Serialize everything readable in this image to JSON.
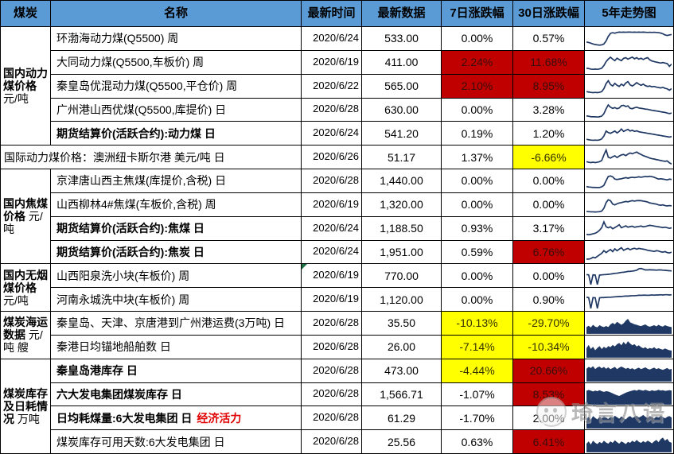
{
  "colors": {
    "header_bg": "#5B9BD5",
    "red_bg": "#C00000",
    "red_text": "#3A0C0C",
    "yellow_bg": "#FFFF00",
    "yellow_text": "#333300",
    "spark": "#1F3864",
    "note_red": "#E00000",
    "flag_green": "#1E7145"
  },
  "watermark": {
    "text": "琦言八语"
  },
  "table": {
    "columns": [
      "煤炭",
      "名称",
      "最新时间",
      "最新数据",
      "7日涨跌幅",
      "30日涨跌幅",
      "5年走势图"
    ],
    "groups": [
      {
        "bold": "国内动力煤价格",
        "unit": "元/吨",
        "row_start": 0,
        "span": 5
      },
      {
        "bold": "国内焦煤价格",
        "unit": "元/吨",
        "row_start": 6,
        "span": 4
      },
      {
        "bold": "国内无烟煤价格",
        "unit": "元/吨",
        "row_start": 10,
        "span": 2
      },
      {
        "bold": "煤炭海运数据",
        "unit": "元/吨 艘",
        "row_start": 12,
        "span": 2
      },
      {
        "bold": "煤炭库存及日耗情况",
        "unit": "万吨",
        "row_start": 14,
        "span": 4
      }
    ],
    "rows": [
      {
        "name": "环渤海动力煤(Q5500) 周",
        "bold": false,
        "date": "2020/6/24",
        "value": "533.00",
        "d7": "0.00%",
        "d7_bg": "none",
        "d30": "0.57%",
        "d30_bg": "none",
        "spark": {
          "type": "line",
          "points": [
            0.32,
            0.3,
            0.26,
            0.22,
            0.19,
            0.17,
            0.16,
            0.17,
            0.22,
            0.38,
            0.62,
            0.78,
            0.82,
            0.79,
            0.83,
            0.85,
            0.84,
            0.85,
            0.84,
            0.85,
            0.85,
            0.84,
            0.85,
            0.84,
            0.85,
            0.84,
            0.85,
            0.84,
            0.83,
            0.84,
            0.83,
            0.84,
            0.83,
            0.82,
            0.8,
            0.76,
            0.7,
            0.67,
            0.7,
            0.72
          ]
        }
      },
      {
        "name": "大同动力煤(Q5500,车板价) 周",
        "bold": false,
        "date": "2020/6/19",
        "value": "411.00",
        "d7": "2.24%",
        "d7_bg": "red",
        "d30": "11.68%",
        "d30_bg": "red",
        "spark": {
          "type": "line",
          "points": [
            0.2,
            0.18,
            0.15,
            0.14,
            0.15,
            0.14,
            0.16,
            0.2,
            0.34,
            0.55,
            0.68,
            0.78,
            0.68,
            0.6,
            0.73,
            0.66,
            0.6,
            0.72,
            0.76,
            0.68,
            0.74,
            0.79,
            0.7,
            0.76,
            0.68,
            0.73,
            0.66,
            0.72,
            0.76,
            0.64,
            0.58,
            0.55,
            0.52,
            0.5,
            0.47,
            0.5,
            0.47,
            0.44,
            0.3,
            0.42
          ]
        }
      },
      {
        "name": "秦皇岛优混动力煤(Q5500,平仓价) 周",
        "bold": false,
        "date": "2020/6/22",
        "value": "565.00",
        "d7": "2.10%",
        "d7_bg": "red",
        "d30": "8.95%",
        "d30_bg": "red",
        "spark": {
          "type": "line",
          "points": [
            0.22,
            0.2,
            0.18,
            0.17,
            0.18,
            0.17,
            0.19,
            0.22,
            0.38,
            0.65,
            0.8,
            0.6,
            0.52,
            0.66,
            0.56,
            0.5,
            0.62,
            0.54,
            0.68,
            0.75,
            0.58,
            0.52,
            0.6,
            0.7,
            0.62,
            0.56,
            0.62,
            0.54,
            0.5,
            0.52,
            0.48,
            0.5,
            0.46,
            0.44,
            0.42,
            0.45,
            0.4,
            0.37,
            0.3,
            0.38
          ]
        }
      },
      {
        "name": "广州港山西优煤(Q5500,库提价) 日",
        "bold": false,
        "date": "2020/6/28",
        "value": "630.00",
        "d7": "0.00%",
        "d7_bg": "none",
        "d30": "3.28%",
        "d30_bg": "none",
        "spark": {
          "type": "line",
          "points": [
            0.2,
            0.18,
            0.16,
            0.15,
            0.15,
            0.14,
            0.16,
            0.19,
            0.32,
            0.58,
            0.78,
            0.66,
            0.6,
            0.64,
            0.58,
            0.62,
            0.74,
            0.76,
            0.7,
            0.73,
            0.6,
            0.58,
            0.63,
            0.66,
            0.62,
            0.6,
            0.58,
            0.56,
            0.55,
            0.52,
            0.5,
            0.48,
            0.46,
            0.44,
            0.42,
            0.4,
            0.38,
            0.35,
            0.32,
            0.35
          ]
        }
      },
      {
        "name": "期货结算价(活跃合约):动力煤 日",
        "bold": true,
        "date": "2020/6/24",
        "value": "541.20",
        "d7": "0.19%",
        "d7_bg": "none",
        "d30": "1.20%",
        "d30_bg": "none",
        "spark": {
          "type": "line",
          "points": [
            0.18,
            0.16,
            0.14,
            0.13,
            0.14,
            0.13,
            0.15,
            0.2,
            0.36,
            0.62,
            0.54,
            0.5,
            0.56,
            0.62,
            0.52,
            0.6,
            0.73,
            0.6,
            0.66,
            0.71,
            0.62,
            0.66,
            0.6,
            0.63,
            0.58,
            0.56,
            0.54,
            0.52,
            0.5,
            0.48,
            0.46,
            0.44,
            0.42,
            0.4,
            0.38,
            0.36,
            0.34,
            0.32,
            0.3,
            0.33
          ]
        }
      },
      {
        "name": "国际动力煤价格：澳洲纽卡斯尔港 美元/吨 日",
        "bold": false,
        "wide": true,
        "date": "2020/6/26",
        "value": "51.17",
        "d7": "1.37%",
        "d7_bg": "none",
        "d30": "-6.66%",
        "d30_bg": "yellow",
        "spark": {
          "type": "line",
          "points": [
            0.26,
            0.23,
            0.21,
            0.23,
            0.21,
            0.23,
            0.26,
            0.32,
            0.62,
            0.88,
            0.5,
            0.45,
            0.52,
            0.57,
            0.48,
            0.56,
            0.62,
            0.64,
            0.58,
            0.66,
            0.72,
            0.68,
            0.73,
            0.77,
            0.7,
            0.64,
            0.58,
            0.54,
            0.5,
            0.45,
            0.42,
            0.4,
            0.37,
            0.35,
            0.32,
            0.3,
            0.28,
            0.3,
            0.2,
            0.14
          ]
        }
      },
      {
        "name": "京津唐山西主焦煤(库提价,含税) 日",
        "bold": false,
        "date": "2020/6/28",
        "value": "1,440.00",
        "d7": "0.00%",
        "d7_bg": "none",
        "d30": "0.00%",
        "d30_bg": "none",
        "spark": {
          "type": "line",
          "points": [
            0.2,
            0.18,
            0.17,
            0.16,
            0.16,
            0.15,
            0.16,
            0.19,
            0.27,
            0.52,
            0.74,
            0.77,
            0.72,
            0.6,
            0.58,
            0.6,
            0.62,
            0.65,
            0.68,
            0.65,
            0.68,
            0.7,
            0.68,
            0.7,
            0.72,
            0.7,
            0.72,
            0.74,
            0.73,
            0.75,
            0.73,
            0.7,
            0.65,
            0.6,
            0.62,
            0.6,
            0.58,
            0.56,
            0.6,
            0.58
          ]
        }
      },
      {
        "name": "山西柳林4#焦煤(车板价,含税) 周",
        "bold": false,
        "date": "2020/6/19",
        "value": "1,320.00",
        "d7": "0.00%",
        "d7_bg": "none",
        "d30": "0.00%",
        "d30_bg": "none",
        "spark": {
          "type": "line",
          "points": [
            0.15,
            0.14,
            0.13,
            0.13,
            0.12,
            0.13,
            0.14,
            0.17,
            0.32,
            0.62,
            0.77,
            0.72,
            0.54,
            0.5,
            0.56,
            0.6,
            0.62,
            0.65,
            0.68,
            0.66,
            0.7,
            0.72,
            0.7,
            0.72,
            0.73,
            0.72,
            0.7,
            0.68,
            0.65,
            0.6,
            0.58,
            0.56,
            0.54,
            0.5,
            0.48,
            0.5,
            0.46,
            0.44,
            0.46,
            0.45
          ]
        }
      },
      {
        "name": "期货结算价(活跃合约):焦煤 日",
        "bold": true,
        "date": "2020/6/24",
        "value": "1,188.50",
        "d7": "0.93%",
        "d7_bg": "none",
        "d30": "3.17%",
        "d30_bg": "none",
        "spark": {
          "type": "line",
          "points": [
            0.2,
            0.18,
            0.2,
            0.23,
            0.26,
            0.32,
            0.42,
            0.56,
            0.86,
            0.6,
            0.55,
            0.6,
            0.5,
            0.56,
            0.63,
            0.71,
            0.55,
            0.6,
            0.65,
            0.58,
            0.61,
            0.63,
            0.58,
            0.6,
            0.62,
            0.64,
            0.6,
            0.62,
            0.65,
            0.68,
            0.66,
            0.64,
            0.62,
            0.6,
            0.58,
            0.56,
            0.58,
            0.55,
            0.52,
            0.55
          ]
        }
      },
      {
        "name": "期货结算价(活跃合约):焦炭 日",
        "bold": true,
        "date": "2020/6/24",
        "value": "1,951.00",
        "d7": "0.59%",
        "d7_bg": "none",
        "d30": "6.76%",
        "d30_bg": "red",
        "spark": {
          "type": "line",
          "points": [
            0.15,
            0.15,
            0.18,
            0.25,
            0.22,
            0.3,
            0.38,
            0.46,
            0.6,
            0.5,
            0.58,
            0.66,
            0.55,
            0.7,
            0.6,
            0.68,
            0.76,
            0.62,
            0.68,
            0.72,
            0.65,
            0.7,
            0.73,
            0.68,
            0.72,
            0.7,
            0.68,
            0.66,
            0.62,
            0.6,
            0.58,
            0.56,
            0.6,
            0.58,
            0.54,
            0.52,
            0.55,
            0.5,
            0.48,
            0.52
          ]
        }
      },
      {
        "name": "山西阳泉洗小块(车板价) 周",
        "bold": false,
        "date": "2020/6/19",
        "date_flag": true,
        "value": "770.00",
        "d7": "0.00%",
        "d7_bg": "none",
        "d30": "0.00%",
        "d30_bg": "none",
        "spark": {
          "type": "line",
          "points": [
            0.55,
            0.54,
            0.03,
            0.54,
            0.53,
            0.03,
            0.53,
            0.54,
            0.55,
            0.56,
            0.57,
            0.58,
            0.6,
            0.62,
            0.63,
            0.65,
            0.67,
            0.68,
            0.7,
            0.72,
            0.73,
            0.74,
            0.76,
            0.79,
            0.86,
            0.88,
            0.84,
            0.8,
            0.8,
            0.81,
            0.8,
            0.8,
            0.79,
            0.8,
            0.8,
            0.79,
            0.78,
            0.77,
            0.76,
            0.75
          ]
        }
      },
      {
        "name": "河南永城洗中块(车板价) 周",
        "bold": false,
        "date": "2020/6/19",
        "value": "1,120.00",
        "d7": "0.00%",
        "d7_bg": "none",
        "d30": "0.90%",
        "d30_bg": "none",
        "spark": {
          "type": "line",
          "points": [
            0.62,
            0.6,
            0.03,
            0.6,
            0.59,
            0.03,
            0.59,
            0.6,
            0.6,
            0.61,
            0.62,
            0.62,
            0.63,
            0.64,
            0.65,
            0.66,
            0.66,
            0.67,
            0.68,
            0.68,
            0.69,
            0.7,
            0.7,
            0.71,
            0.72,
            0.72,
            0.73,
            0.73,
            0.72,
            0.73,
            0.74,
            0.73,
            0.74,
            0.74,
            0.75,
            0.74,
            0.75,
            0.75,
            0.74,
            0.75
          ]
        }
      },
      {
        "name": "秦皇岛、天津、京唐港到广州港运费(3万吨) 日",
        "bold": false,
        "date": "2020/6/28",
        "value": "35.50",
        "d7": "-10.13%",
        "d7_bg": "yellow",
        "d30": "-29.70%",
        "d30_bg": "yellow",
        "spark": {
          "type": "area",
          "points": [
            0.3,
            0.37,
            0.28,
            0.42,
            0.32,
            0.29,
            0.4,
            0.34,
            0.3,
            0.36,
            0.3,
            0.44,
            0.52,
            0.45,
            0.58,
            0.5,
            0.42,
            0.5,
            0.64,
            0.74,
            0.55,
            0.5,
            0.45,
            0.42,
            0.38,
            0.35,
            0.4,
            0.44,
            0.36,
            0.32,
            0.36,
            0.4,
            0.34,
            0.42,
            0.36,
            0.33,
            0.4,
            0.35,
            0.32,
            0.3
          ]
        }
      },
      {
        "name": "秦港日均锚地船舶数 日",
        "bold": false,
        "date": "2020/6/28",
        "value": "26.00",
        "d7": "-7.14%",
        "d7_bg": "yellow",
        "d30": "-10.34%",
        "d30_bg": "yellow",
        "spark": {
          "type": "area",
          "points": [
            0.45,
            0.62,
            0.4,
            0.52,
            0.34,
            0.46,
            0.56,
            0.4,
            0.52,
            0.44,
            0.56,
            0.5,
            0.62,
            0.54,
            0.66,
            0.72,
            0.6,
            0.78,
            0.64,
            0.82,
            0.7,
            0.6,
            0.66,
            0.54,
            0.6,
            0.5,
            0.44,
            0.5,
            0.4,
            0.46,
            0.42,
            0.5,
            0.4,
            0.45,
            0.4,
            0.37,
            0.43,
            0.38,
            0.34,
            0.32
          ]
        }
      },
      {
        "name": "秦皇岛港库存 日",
        "bold": true,
        "date": "2020/6/28",
        "value": "473.00",
        "d7": "-4.44%",
        "d7_bg": "yellow",
        "d30": "20.66%",
        "d30_bg": "red",
        "spark": {
          "type": "area",
          "points": [
            0.62,
            0.72,
            0.66,
            0.76,
            0.6,
            0.7,
            0.74,
            0.64,
            0.72,
            0.62,
            0.7,
            0.6,
            0.66,
            0.72,
            0.6,
            0.68,
            0.74,
            0.68,
            0.62,
            0.67,
            0.6,
            0.65,
            0.58,
            0.63,
            0.68,
            0.6,
            0.65,
            0.7,
            0.62,
            0.58,
            0.63,
            0.68,
            0.6,
            0.65,
            0.6,
            0.56,
            0.61,
            0.66,
            0.58,
            0.62
          ]
        }
      },
      {
        "name": "六大发电集团煤炭库存 日",
        "bold": true,
        "date": "2020/6/28",
        "value": "1,566.71",
        "d7": "-1.07%",
        "d7_bg": "none",
        "d30": "8.53%",
        "d30_bg": "red",
        "spark": {
          "type": "area",
          "points": [
            0.72,
            0.76,
            0.73,
            0.68,
            0.73,
            0.7,
            0.75,
            0.7,
            0.66,
            0.7,
            0.68,
            0.63,
            0.58,
            0.53,
            0.48,
            0.44,
            0.5,
            0.56,
            0.62,
            0.66,
            0.7,
            0.73,
            0.76,
            0.72,
            0.78,
            0.75,
            0.72,
            0.77,
            0.73,
            0.7,
            0.75,
            0.71,
            0.73,
            0.77,
            0.73,
            0.75,
            0.71,
            0.73,
            0.75,
            0.73
          ]
        }
      },
      {
        "name": "日均耗煤量:6大发电集团 日",
        "bold": true,
        "note": "经济活力",
        "date": "2020/6/28",
        "value": "61.29",
        "d7": "-1.70%",
        "d7_bg": "none",
        "d30": "2.00%",
        "d30_bg": "none",
        "spark": {
          "type": "area",
          "points": [
            0.46,
            0.56,
            0.4,
            0.6,
            0.5,
            0.42,
            0.56,
            0.48,
            0.6,
            0.52,
            0.44,
            0.57,
            0.5,
            0.62,
            0.54,
            0.46,
            0.58,
            0.5,
            0.42,
            0.54,
            0.6,
            0.5,
            0.56,
            0.62,
            0.52,
            0.58,
            0.66,
            0.56,
            0.5,
            0.6,
            0.54,
            0.48,
            0.58,
            0.52,
            0.62,
            0.55,
            0.48,
            0.56,
            0.6,
            0.52
          ]
        }
      },
      {
        "name": "煤炭库存可用天数:6大发电集团 日",
        "bold": false,
        "date": "2020/6/28",
        "value": "25.56",
        "d7": "0.63%",
        "d7_bg": "none",
        "d30": "6.41%",
        "d30_bg": "red",
        "spark": {
          "type": "area",
          "points": [
            0.4,
            0.52,
            0.35,
            0.56,
            0.45,
            0.38,
            0.5,
            0.42,
            0.56,
            0.46,
            0.4,
            0.52,
            0.44,
            0.58,
            0.48,
            0.4,
            0.52,
            0.46,
            0.38,
            0.5,
            0.44,
            0.56,
            0.48,
            0.6,
            0.5,
            0.44,
            0.54,
            0.46,
            0.56,
            0.5,
            0.42,
            0.52,
            0.6,
            0.48,
            0.64,
            0.72,
            0.56,
            0.66,
            0.5,
            0.45
          ]
        }
      }
    ]
  }
}
